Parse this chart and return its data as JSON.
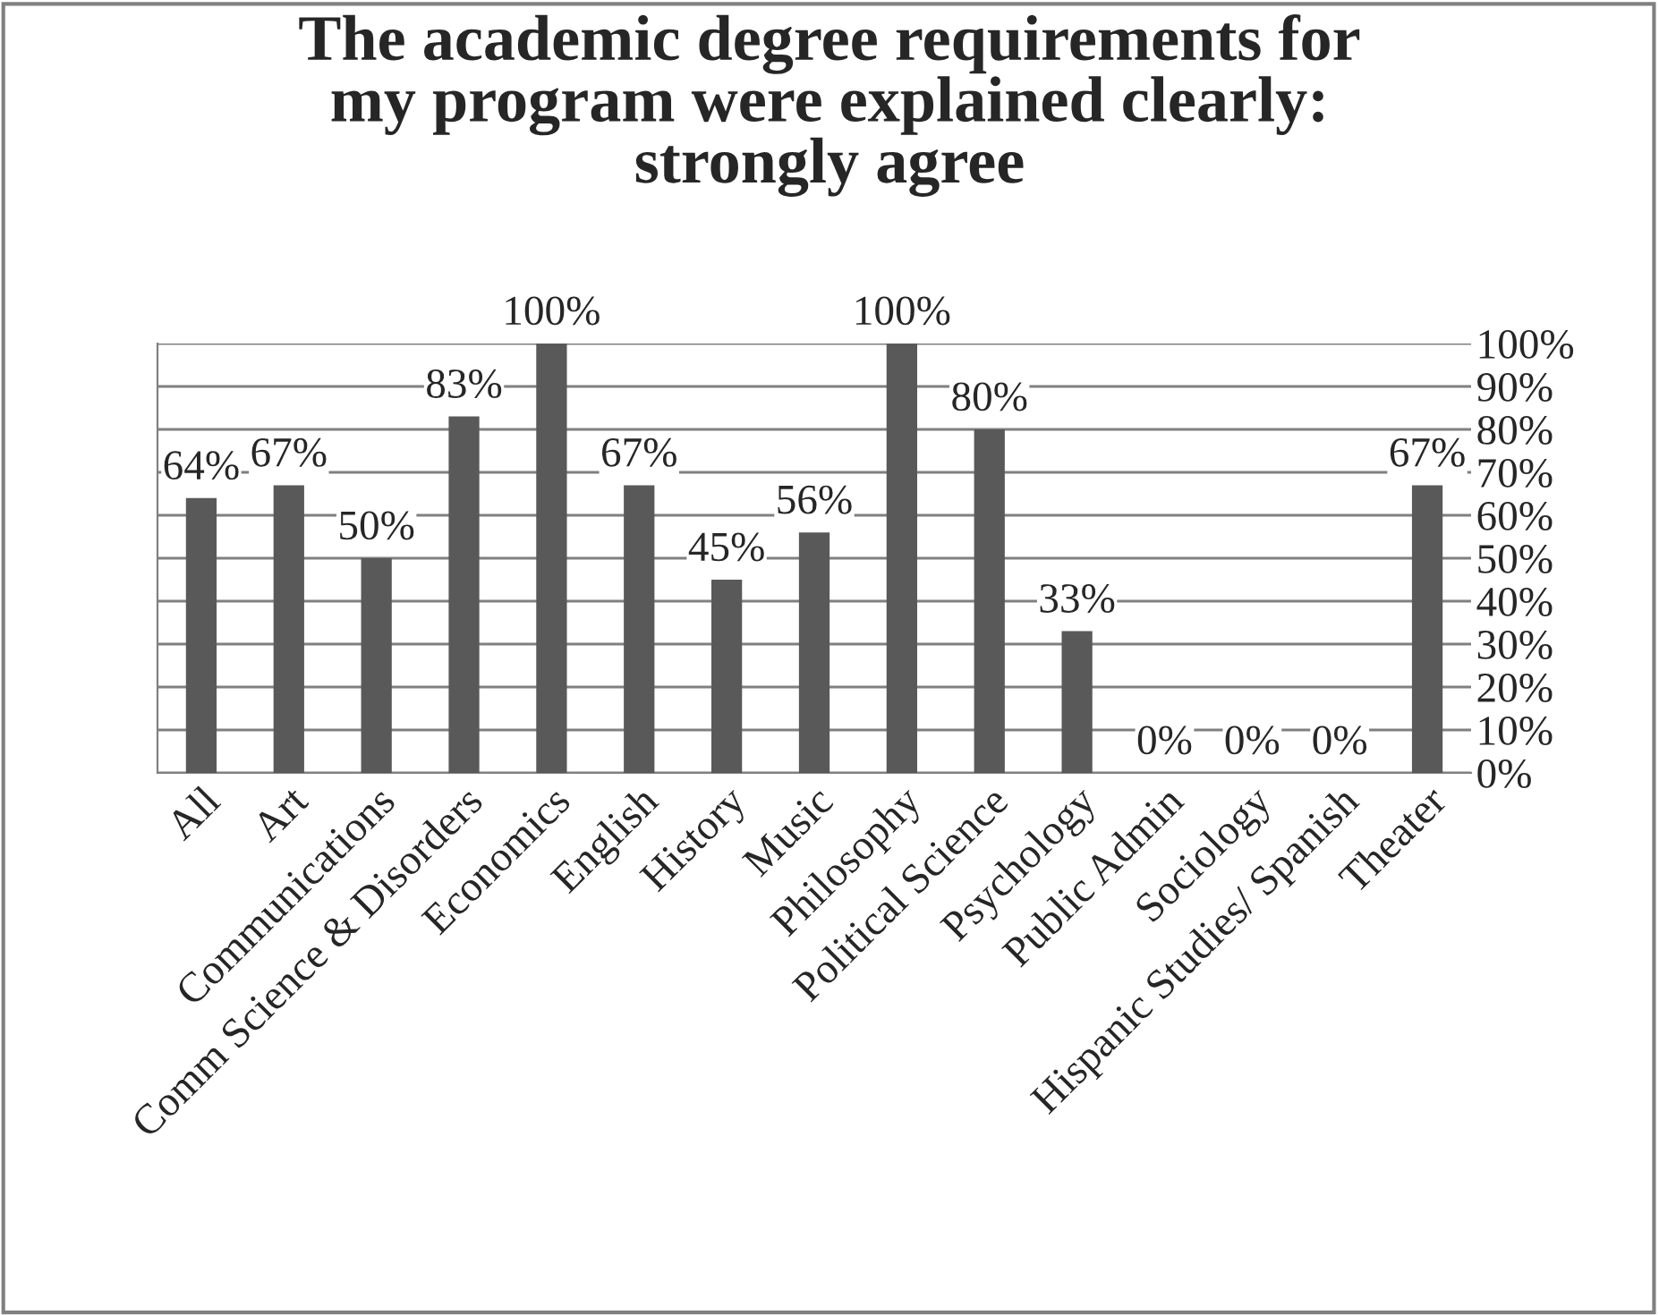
{
  "chart_data": {
    "type": "bar",
    "title": "The academic degree requirements for\nmy program were explained clearly:\nstrongly agree",
    "categories": [
      "All",
      "Art",
      "Communications",
      "Comm Science & Disorders",
      "Economics",
      "English",
      "History",
      "Music",
      "Philosophy",
      "Political Science",
      "Psychology",
      "Public Admin",
      "Sociology",
      "Hispanic Studies/ Spanish",
      "Theater"
    ],
    "values": [
      64,
      67,
      50,
      83,
      100,
      67,
      45,
      56,
      100,
      80,
      33,
      0,
      0,
      0,
      67
    ],
    "value_labels": [
      "64%",
      "67%",
      "50%",
      "83%",
      "100%",
      "67%",
      "45%",
      "56%",
      "100%",
      "80%",
      "33%",
      "0%",
      "0%",
      "0%",
      "67%"
    ],
    "color": "#595959",
    "ylim": [
      0,
      100
    ],
    "yticks": [
      {
        "value": 0,
        "label": "0%"
      },
      {
        "value": 10,
        "label": "10%"
      },
      {
        "value": 20,
        "label": "20%"
      },
      {
        "value": 30,
        "label": "30%"
      },
      {
        "value": 40,
        "label": "40%"
      },
      {
        "value": 50,
        "label": "50%"
      },
      {
        "value": 60,
        "label": "60%"
      },
      {
        "value": 70,
        "label": "70%"
      },
      {
        "value": 80,
        "label": "80%"
      },
      {
        "value": 90,
        "label": "90%"
      },
      {
        "value": 100,
        "label": "100%"
      }
    ],
    "grid": "y",
    "legend": false
  }
}
